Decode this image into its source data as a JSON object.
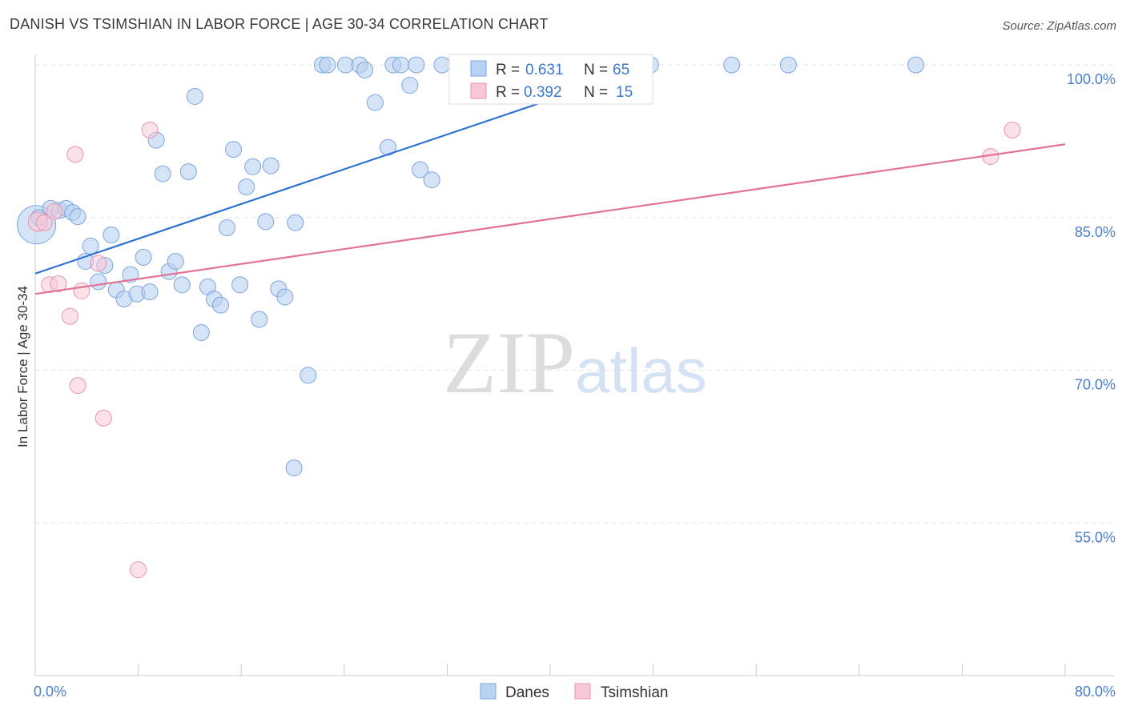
{
  "title": "DANISH VS TSIMSHIAN IN LABOR FORCE | AGE 30-34 CORRELATION CHART",
  "source": "Source: ZipAtlas.com",
  "watermark": {
    "zip": "ZIP",
    "atlas": "atlas"
  },
  "chart_data": {
    "type": "scatter",
    "ylabel": "In Labor Force | Age 30-34",
    "xlim": [
      0,
      80
    ],
    "ylim": [
      40,
      101.5
    ],
    "x_tick_labels": [
      {
        "value": 0,
        "label": "0.0%"
      },
      {
        "value": 80,
        "label": "80.0%"
      }
    ],
    "y_tick_labels": [
      {
        "value": 100,
        "label": "100.0%"
      },
      {
        "value": 85,
        "label": "85.0%"
      },
      {
        "value": 70,
        "label": "70.0%"
      },
      {
        "value": 55,
        "label": "55.0%"
      }
    ],
    "grid": "horizontal-dashed",
    "legend": {
      "position": "top-center",
      "rows": [
        {
          "r_label": "R = ",
          "r_value": "0.631",
          "n_label": "N = ",
          "n_value": "65"
        },
        {
          "r_label": "R = ",
          "r_value": "0.392",
          "n_label": "N = ",
          "n_value": "15"
        }
      ]
    },
    "bottom_legend": [
      "Danes",
      "Tsimshian"
    ],
    "colors": {
      "danes_fill": "#b9d1f2",
      "danes_stroke": "#7aa5de",
      "danes_line": "#2e72d2",
      "tsim_fill": "#f8c8d6",
      "tsim_stroke": "#ea92ad",
      "tsim_line": "#e2729a"
    },
    "series": [
      {
        "name": "Danes",
        "trend": {
          "x": [
            0,
            48
          ],
          "y": [
            79.5,
            100
          ]
        },
        "points": [
          [
            0.1,
            84.3,
            24
          ],
          [
            0.3,
            85.0,
            10
          ],
          [
            1.2,
            85.9,
            10
          ],
          [
            1.9,
            85.7,
            10
          ],
          [
            2.4,
            85.9,
            10
          ],
          [
            2.9,
            85.5,
            10
          ],
          [
            3.3,
            85.1,
            10
          ],
          [
            3.9,
            80.7,
            10
          ],
          [
            4.3,
            82.2,
            10
          ],
          [
            4.9,
            78.7,
            10
          ],
          [
            5.4,
            80.3,
            10
          ],
          [
            5.9,
            83.3,
            10
          ],
          [
            6.3,
            77.9,
            10
          ],
          [
            6.9,
            77.0,
            10
          ],
          [
            7.4,
            79.4,
            10
          ],
          [
            7.9,
            77.5,
            10
          ],
          [
            8.4,
            81.1,
            10
          ],
          [
            8.9,
            77.7,
            10
          ],
          [
            9.4,
            92.6,
            10
          ],
          [
            9.9,
            89.3,
            10
          ],
          [
            10.4,
            79.7,
            10
          ],
          [
            10.9,
            80.7,
            10
          ],
          [
            11.4,
            78.4,
            10
          ],
          [
            11.9,
            89.5,
            10
          ],
          [
            12.4,
            96.9,
            10
          ],
          [
            12.9,
            73.7,
            10
          ],
          [
            13.4,
            78.2,
            10
          ],
          [
            13.9,
            77.0,
            10
          ],
          [
            14.4,
            76.4,
            10
          ],
          [
            14.9,
            84.0,
            10
          ],
          [
            15.4,
            91.7,
            10
          ],
          [
            15.9,
            78.4,
            10
          ],
          [
            16.4,
            88.0,
            10
          ],
          [
            16.9,
            90.0,
            10
          ],
          [
            17.4,
            75.0,
            10
          ],
          [
            17.9,
            84.6,
            10
          ],
          [
            18.3,
            90.1,
            10
          ],
          [
            18.9,
            78.0,
            10
          ],
          [
            19.4,
            77.2,
            10
          ],
          [
            20.2,
            84.5,
            10
          ],
          [
            20.1,
            60.4,
            10
          ],
          [
            21.2,
            69.5,
            10
          ],
          [
            22.3,
            100.0,
            10
          ],
          [
            22.7,
            100.0,
            10
          ],
          [
            24.1,
            100.0,
            10
          ],
          [
            25.2,
            100.0,
            10
          ],
          [
            25.6,
            99.5,
            10
          ],
          [
            26.4,
            96.3,
            10
          ],
          [
            27.4,
            91.9,
            10
          ],
          [
            27.8,
            100.0,
            10
          ],
          [
            28.4,
            100.0,
            10
          ],
          [
            29.1,
            98.0,
            10
          ],
          [
            29.6,
            100.0,
            10
          ],
          [
            29.9,
            89.7,
            10
          ],
          [
            30.8,
            88.7,
            10
          ],
          [
            31.6,
            100.0,
            10
          ],
          [
            34.9,
            100.0,
            10
          ],
          [
            35.8,
            100.0,
            10
          ],
          [
            37.2,
            100.0,
            10
          ],
          [
            39.0,
            100.0,
            10
          ],
          [
            41.4,
            100.0,
            10
          ],
          [
            47.8,
            100.0,
            10
          ],
          [
            54.1,
            100.0,
            10
          ],
          [
            58.5,
            100.0,
            10
          ],
          [
            68.4,
            100.0,
            10
          ]
        ]
      },
      {
        "name": "Tsimshian",
        "trend": {
          "x": [
            0,
            80
          ],
          "y": [
            77.5,
            92.2
          ]
        },
        "points": [
          [
            0.2,
            84.6,
            12
          ],
          [
            0.7,
            84.5,
            10
          ],
          [
            1.1,
            78.4,
            10
          ],
          [
            1.5,
            85.6,
            10
          ],
          [
            1.8,
            78.5,
            10
          ],
          [
            2.7,
            75.3,
            10
          ],
          [
            3.1,
            91.2,
            10
          ],
          [
            3.3,
            68.5,
            10
          ],
          [
            3.6,
            77.8,
            10
          ],
          [
            4.9,
            80.5,
            10
          ],
          [
            5.3,
            65.3,
            10
          ],
          [
            8.0,
            50.4,
            10
          ],
          [
            8.9,
            93.6,
            10
          ],
          [
            74.2,
            91.0,
            10
          ],
          [
            75.9,
            93.6,
            10
          ]
        ]
      }
    ]
  }
}
